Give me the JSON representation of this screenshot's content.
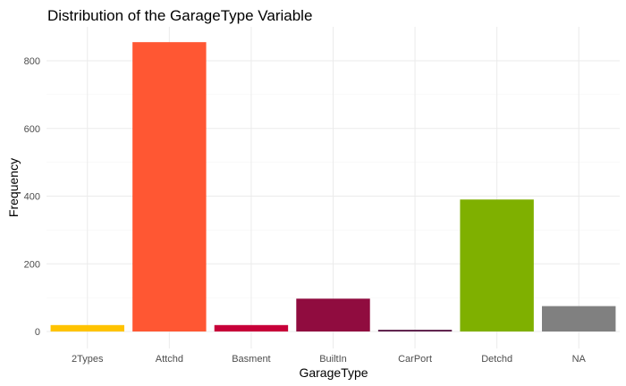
{
  "chart_data": {
    "type": "bar",
    "title": "Distribution of the GarageType Variable",
    "xlabel": "GarageType",
    "ylabel": "Frequency",
    "categories": [
      "2Types",
      "Attchd",
      "Basment",
      "BuiltIn",
      "CarPort",
      "Detchd",
      "NA"
    ],
    "values": [
      19,
      855,
      19,
      97,
      5,
      390,
      75
    ],
    "colors": [
      "#ffc300",
      "#ff5733",
      "#c70039",
      "#900c3f",
      "#581845",
      "#7fb000",
      "#808080"
    ],
    "ylim": [
      0,
      900
    ],
    "yticks": [
      0,
      200,
      400,
      600,
      800
    ],
    "grid": true,
    "legend": "none"
  }
}
